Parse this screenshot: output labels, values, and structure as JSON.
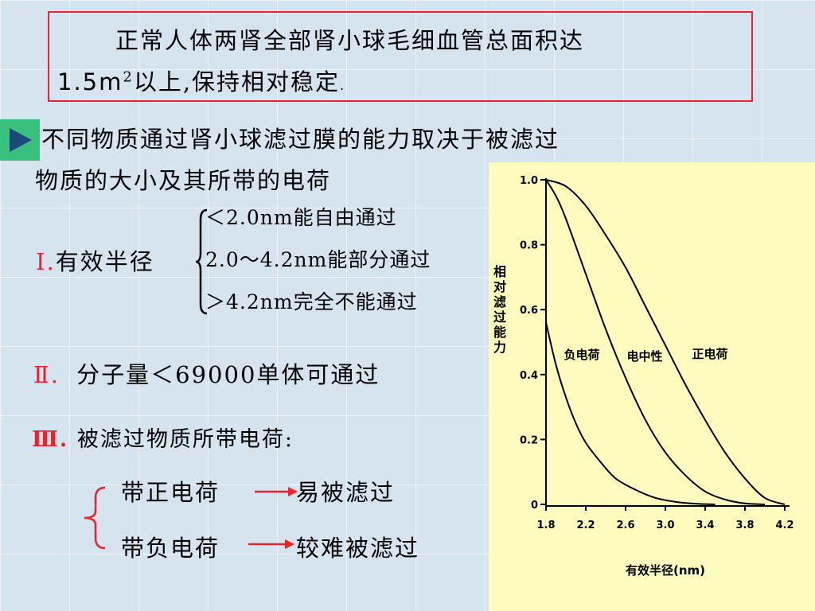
{
  "intro": {
    "line1": "正常人体两肾全部肾小球毛细血管总面积达",
    "line2_prefix": "1.5m",
    "line2_sup": "2",
    "line2_rest": "以上,保持相对稳定",
    "line2_end": "."
  },
  "factor": {
    "line1": "不同物质通过肾小球滤过膜的能力取决于被滤过",
    "line2": "物质的大小及其所带的电荷"
  },
  "radius": {
    "numeral": "Ⅰ.",
    "label": "有效半径",
    "options": [
      "＜2.0nm能自由通过",
      "2.0～4.2nm能部分通过",
      "＞4.2nm完全不能通过"
    ]
  },
  "mw": {
    "numeral": "Ⅱ.",
    "text": "分子量＜69000单体可通过"
  },
  "charge": {
    "numeral": "Ⅲ.",
    "title": "被滤过物质所带电荷:",
    "positive_label": "带正电荷",
    "positive_result": "易被滤过",
    "negative_label": "带负电荷",
    "negative_result": "较难被滤过"
  },
  "colors": {
    "accent_red": "#e8242a",
    "play_green": "#39c07e",
    "chart_bg": "#fdfbbd"
  },
  "icons": {
    "play": "play-triangle-icon"
  },
  "chart_data": {
    "type": "line",
    "ylabel": "相对滤过能力",
    "xlabel": "有效半径(nm)",
    "xlim": [
      1.8,
      4.2
    ],
    "ylim": [
      0,
      1.0
    ],
    "xticks": [
      "1.8",
      "2.2",
      "2.6",
      "3.0",
      "3.4",
      "3.8",
      "4.2"
    ],
    "yticks": [
      "0",
      "0.2",
      "0.4",
      "0.6",
      "0.8",
      "1.0"
    ],
    "grid": false,
    "series": [
      {
        "name": "负电荷",
        "x": [
          1.8,
          1.9,
          2.0,
          2.1,
          2.2,
          2.35,
          2.5,
          2.7,
          2.9,
          3.1,
          3.3,
          3.5
        ],
        "y": [
          0.56,
          0.43,
          0.33,
          0.25,
          0.19,
          0.13,
          0.08,
          0.045,
          0.02,
          0.008,
          0.002,
          0.0
        ]
      },
      {
        "name": "电中性",
        "x": [
          1.8,
          1.9,
          2.0,
          2.2,
          2.4,
          2.6,
          2.8,
          3.0,
          3.2,
          3.4,
          3.6,
          3.8,
          4.0
        ],
        "y": [
          1.0,
          0.95,
          0.88,
          0.71,
          0.54,
          0.39,
          0.26,
          0.16,
          0.09,
          0.04,
          0.015,
          0.003,
          0.0
        ]
      },
      {
        "name": "正电荷",
        "x": [
          1.8,
          2.0,
          2.2,
          2.4,
          2.6,
          2.8,
          3.0,
          3.2,
          3.4,
          3.6,
          3.8,
          4.0,
          4.2
        ],
        "y": [
          1.0,
          0.98,
          0.92,
          0.83,
          0.73,
          0.61,
          0.49,
          0.37,
          0.26,
          0.16,
          0.08,
          0.02,
          0.0
        ]
      }
    ]
  }
}
